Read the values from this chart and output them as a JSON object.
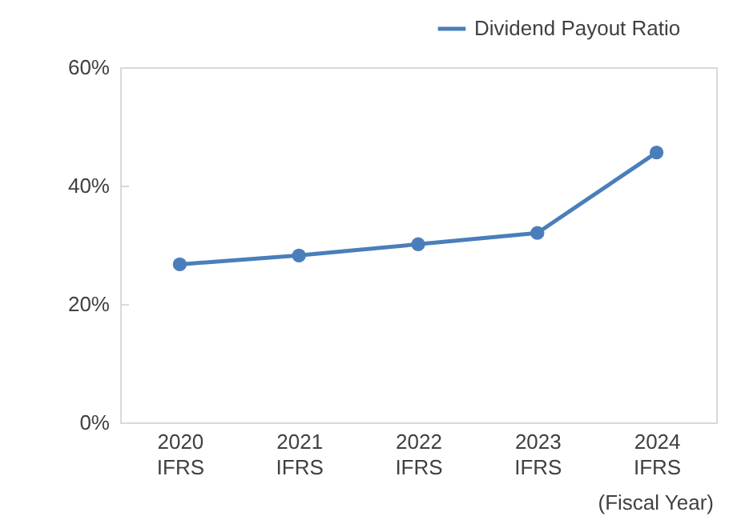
{
  "chart_data": {
    "type": "line",
    "xlabel": "(Fiscal Year)",
    "categories": [
      "2020\nIFRS",
      "2021\nIFRS",
      "2022\nIFRS",
      "2023\nIFRS",
      "2024\nIFRS"
    ],
    "series": [
      {
        "name": "Dividend Payout Ratio",
        "color": "#4a7ebb",
        "values": [
          26.7,
          28.2,
          30.1,
          32.0,
          45.6
        ]
      }
    ],
    "ylim": [
      0,
      60
    ],
    "yticks": [
      {
        "value": 0,
        "label": "0%"
      },
      {
        "value": 20,
        "label": "20%"
      },
      {
        "value": 40,
        "label": "40%"
      },
      {
        "value": 60,
        "label": "60%"
      }
    ],
    "grid": false,
    "legend": "top right",
    "marker": "circle",
    "line_style": "solid"
  }
}
